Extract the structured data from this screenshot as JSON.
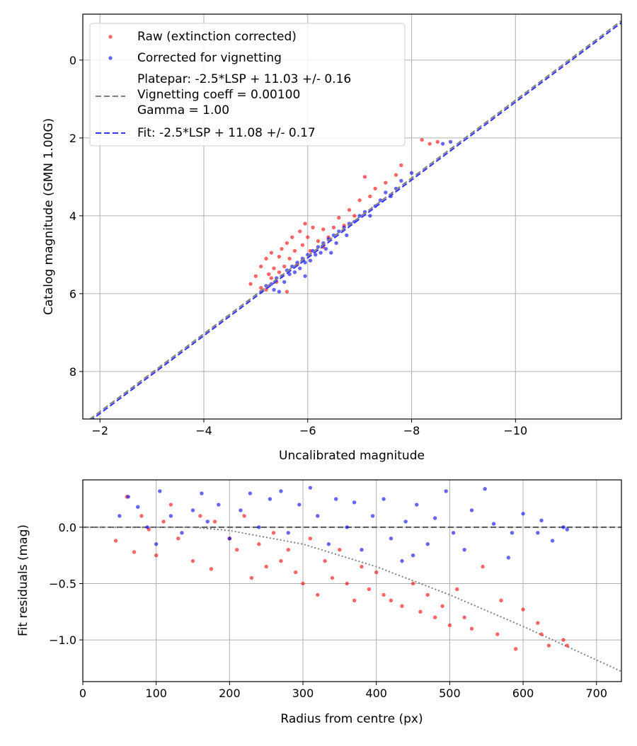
{
  "chart_data": [
    {
      "type": "scatter",
      "title": "",
      "xlabel": "Uncalibrated magnitude",
      "ylabel": "Catalog magnitude (GMN 1.00G)",
      "xlim": [
        -1.67,
        -12.04
      ],
      "ylim": [
        9.22,
        -1.18
      ],
      "x_inverted": true,
      "y_inverted": true,
      "grid": true,
      "xticks": [
        -2,
        -4,
        -6,
        -8,
        -10
      ],
      "xtick_labels": [
        "−2",
        "−4",
        "−6",
        "−8",
        "−10"
      ],
      "yticks": [
        0,
        2,
        4,
        6,
        8
      ],
      "ytick_labels": [
        "0",
        "2",
        "4",
        "6",
        "8"
      ],
      "legend_position": "top-left",
      "legend": [
        {
          "label": "Raw (extinction corrected)",
          "kind": "marker",
          "color": "#ff0000"
        },
        {
          "label": "Corrected for vignetting",
          "kind": "marker",
          "color": "#0000ff"
        },
        {
          "label_lines": [
            "Platepar: -2.5*LSP + 11.03 +/- 0.16",
            "Vignetting coeff = 0.00100",
            "Gamma = 1.00"
          ],
          "kind": "dashed",
          "color": "#808080"
        },
        {
          "label": "Fit: -2.5*LSP + 11.08 +/- 0.17",
          "kind": "dashed",
          "color": "#3333ff"
        }
      ],
      "lines": [
        {
          "name": "platepar",
          "intercept": 11.03,
          "slope": 1,
          "color": "#808080",
          "style": "dashed"
        },
        {
          "name": "fit",
          "intercept": 11.08,
          "slope": 1,
          "color": "#3333ff",
          "style": "dashed"
        }
      ],
      "series": [
        {
          "name": "Raw (extinction corrected)",
          "color": "#ff0000",
          "points": [
            [
              -4.9,
              5.75
            ],
            [
              -5.0,
              5.55
            ],
            [
              -5.1,
              5.3
            ],
            [
              -5.1,
              5.85
            ],
            [
              -5.2,
              5.1
            ],
            [
              -5.25,
              5.5
            ],
            [
              -5.3,
              4.95
            ],
            [
              -5.35,
              5.35
            ],
            [
              -5.4,
              5.7
            ],
            [
              -5.45,
              5.05
            ],
            [
              -5.5,
              4.85
            ],
            [
              -5.55,
              5.3
            ],
            [
              -5.6,
              4.7
            ],
            [
              -5.65,
              5.1
            ],
            [
              -5.7,
              4.55
            ],
            [
              -5.75,
              4.9
            ],
            [
              -5.8,
              5.25
            ],
            [
              -5.85,
              4.4
            ],
            [
              -5.9,
              4.75
            ],
            [
              -5.95,
              4.2
            ],
            [
              -6.0,
              4.55
            ],
            [
              -6.05,
              4.9
            ],
            [
              -6.1,
              4.3
            ],
            [
              -6.2,
              4.65
            ],
            [
              -6.3,
              4.35
            ],
            [
              -6.4,
              4.55
            ],
            [
              -6.5,
              4.3
            ],
            [
              -6.6,
              4.05
            ],
            [
              -6.7,
              4.25
            ],
            [
              -6.8,
              3.85
            ],
            [
              -6.9,
              4.0
            ],
            [
              -7.0,
              3.6
            ],
            [
              -7.1,
              3.0
            ],
            [
              -7.2,
              3.5
            ],
            [
              -7.3,
              3.3
            ],
            [
              -7.5,
              3.15
            ],
            [
              -7.7,
              2.95
            ],
            [
              -7.8,
              2.7
            ],
            [
              -8.2,
              2.05
            ],
            [
              -8.35,
              2.15
            ],
            [
              -8.5,
              2.1
            ],
            [
              -5.6,
              5.95
            ],
            [
              -6.3,
              4.8
            ],
            [
              -5.2,
              5.9
            ],
            [
              -5.3,
              5.6
            ],
            [
              -5.45,
              5.45
            ]
          ]
        },
        {
          "name": "Corrected for vignetting",
          "color": "#0000ff",
          "points": [
            [
              -5.1,
              5.95
            ],
            [
              -5.2,
              5.8
            ],
            [
              -5.3,
              5.75
            ],
            [
              -5.35,
              5.9
            ],
            [
              -5.4,
              5.6
            ],
            [
              -5.5,
              5.55
            ],
            [
              -5.55,
              5.7
            ],
            [
              -5.6,
              5.4
            ],
            [
              -5.65,
              5.5
            ],
            [
              -5.7,
              5.3
            ],
            [
              -5.75,
              5.45
            ],
            [
              -5.8,
              5.2
            ],
            [
              -5.85,
              5.35
            ],
            [
              -5.9,
              5.1
            ],
            [
              -5.95,
              5.2
            ],
            [
              -6.0,
              5.0
            ],
            [
              -6.05,
              5.15
            ],
            [
              -6.1,
              4.9
            ],
            [
              -6.15,
              5.0
            ],
            [
              -6.2,
              4.8
            ],
            [
              -6.25,
              4.95
            ],
            [
              -6.3,
              4.7
            ],
            [
              -6.35,
              4.85
            ],
            [
              -6.4,
              4.6
            ],
            [
              -6.5,
              4.5
            ],
            [
              -6.55,
              4.7
            ],
            [
              -6.6,
              4.4
            ],
            [
              -6.7,
              4.3
            ],
            [
              -6.75,
              4.5
            ],
            [
              -6.8,
              4.2
            ],
            [
              -6.9,
              4.15
            ],
            [
              -7.0,
              4.0
            ],
            [
              -7.1,
              3.9
            ],
            [
              -7.2,
              4.0
            ],
            [
              -7.3,
              3.75
            ],
            [
              -7.4,
              3.6
            ],
            [
              -7.5,
              3.4
            ],
            [
              -7.6,
              3.5
            ],
            [
              -7.7,
              3.3
            ],
            [
              -7.8,
              3.1
            ],
            [
              -8.0,
              2.9
            ],
            [
              -8.6,
              2.15
            ],
            [
              -8.75,
              2.1
            ],
            [
              -5.45,
              5.95
            ],
            [
              -5.95,
              5.55
            ],
            [
              -6.45,
              4.95
            ]
          ]
        }
      ]
    },
    {
      "type": "scatter",
      "title": "",
      "xlabel": "Radius from centre (px)",
      "ylabel": "Fit residuals (mag)",
      "xlim": [
        0,
        734
      ],
      "ylim": [
        -1.37,
        0.42
      ],
      "grid": true,
      "xticks": [
        0,
        100,
        200,
        300,
        400,
        500,
        600,
        700
      ],
      "xtick_labels": [
        "0",
        "100",
        "200",
        "300",
        "400",
        "500",
        "600",
        "700"
      ],
      "yticks": [
        0.0,
        -0.5,
        -1.0
      ],
      "ytick_labels": [
        "0.0",
        "−0.5",
        "−1.0"
      ],
      "zero_line": {
        "y": 0,
        "color": "#555555",
        "style": "dashed"
      },
      "vignetting_curve": {
        "color": "#808080",
        "style": "dotted",
        "points": [
          [
            0,
            0
          ],
          [
            150,
            0
          ],
          [
            200,
            -0.03
          ],
          [
            300,
            -0.15
          ],
          [
            400,
            -0.35
          ],
          [
            500,
            -0.6
          ],
          [
            600,
            -0.88
          ],
          [
            734,
            -1.28
          ]
        ]
      },
      "series": [
        {
          "name": "Raw (extinction corrected)",
          "color": "#ff0000",
          "points": [
            [
              45,
              -0.12
            ],
            [
              60,
              0.27
            ],
            [
              70,
              -0.22
            ],
            [
              80,
              0.1
            ],
            [
              90,
              -0.02
            ],
            [
              100,
              -0.25
            ],
            [
              110,
              0.05
            ],
            [
              120,
              0.2
            ],
            [
              130,
              -0.1
            ],
            [
              150,
              -0.3
            ],
            [
              160,
              0.1
            ],
            [
              175,
              -0.37
            ],
            [
              180,
              0.05
            ],
            [
              200,
              -0.1
            ],
            [
              210,
              -0.2
            ],
            [
              220,
              0.1
            ],
            [
              230,
              -0.45
            ],
            [
              240,
              -0.15
            ],
            [
              250,
              -0.35
            ],
            [
              260,
              -0.05
            ],
            [
              270,
              -0.3
            ],
            [
              280,
              -0.2
            ],
            [
              290,
              -0.4
            ],
            [
              300,
              -0.5
            ],
            [
              310,
              -0.1
            ],
            [
              320,
              -0.6
            ],
            [
              330,
              -0.3
            ],
            [
              340,
              -0.45
            ],
            [
              350,
              -0.2
            ],
            [
              360,
              -0.5
            ],
            [
              370,
              -0.65
            ],
            [
              380,
              -0.35
            ],
            [
              390,
              -0.55
            ],
            [
              400,
              -0.4
            ],
            [
              410,
              -0.6
            ],
            [
              420,
              -0.65
            ],
            [
              435,
              -0.7
            ],
            [
              450,
              -0.5
            ],
            [
              460,
              -0.75
            ],
            [
              470,
              -0.6
            ],
            [
              480,
              -0.8
            ],
            [
              490,
              -0.7
            ],
            [
              500,
              -0.87
            ],
            [
              510,
              -0.55
            ],
            [
              520,
              -0.8
            ],
            [
              530,
              -0.9
            ],
            [
              545,
              -0.35
            ],
            [
              565,
              -0.95
            ],
            [
              570,
              -0.65
            ],
            [
              590,
              -1.08
            ],
            [
              600,
              -0.73
            ],
            [
              620,
              -0.85
            ],
            [
              625,
              -0.95
            ],
            [
              635,
              -1.05
            ],
            [
              655,
              -1.0
            ],
            [
              660,
              -1.05
            ]
          ]
        },
        {
          "name": "Corrected for vignetting",
          "color": "#0000ff",
          "points": [
            [
              50,
              0.1
            ],
            [
              62,
              0.27
            ],
            [
              75,
              0.18
            ],
            [
              88,
              0.0
            ],
            [
              100,
              -0.15
            ],
            [
              105,
              0.32
            ],
            [
              120,
              0.1
            ],
            [
              135,
              -0.05
            ],
            [
              150,
              0.15
            ],
            [
              162,
              0.3
            ],
            [
              170,
              0.05
            ],
            [
              185,
              0.2
            ],
            [
              200,
              -0.1
            ],
            [
              215,
              0.15
            ],
            [
              228,
              0.3
            ],
            [
              240,
              0.0
            ],
            [
              255,
              0.25
            ],
            [
              270,
              0.32
            ],
            [
              280,
              -0.05
            ],
            [
              295,
              0.2
            ],
            [
              310,
              0.35
            ],
            [
              320,
              0.1
            ],
            [
              335,
              -0.15
            ],
            [
              345,
              0.25
            ],
            [
              360,
              0.0
            ],
            [
              370,
              0.22
            ],
            [
              380,
              -0.2
            ],
            [
              395,
              0.1
            ],
            [
              410,
              0.25
            ],
            [
              420,
              -0.1
            ],
            [
              435,
              -0.3
            ],
            [
              440,
              0.05
            ],
            [
              455,
              0.2
            ],
            [
              470,
              -0.15
            ],
            [
              480,
              0.08
            ],
            [
              495,
              0.32
            ],
            [
              505,
              -0.05
            ],
            [
              520,
              -0.2
            ],
            [
              530,
              0.15
            ],
            [
              548,
              0.34
            ],
            [
              560,
              0.03
            ],
            [
              580,
              -0.27
            ],
            [
              600,
              0.12
            ],
            [
              620,
              -0.05
            ],
            [
              625,
              0.06
            ],
            [
              640,
              -0.12
            ],
            [
              655,
              0.0
            ],
            [
              660,
              -0.02
            ],
            [
              585,
              -0.05
            ],
            [
              450,
              -0.25
            ]
          ]
        }
      ]
    }
  ]
}
